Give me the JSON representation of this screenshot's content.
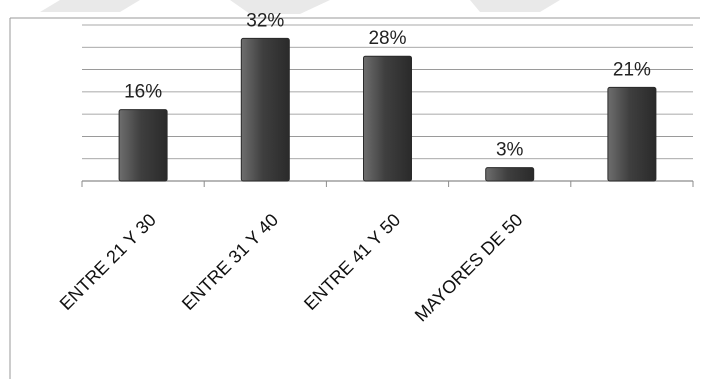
{
  "chart_data": {
    "type": "bar",
    "categories": [
      "ENTRE 21 Y 30",
      "ENTRE 31 Y 40",
      "ENTRE 41 Y 50",
      "MAYORES DE 50",
      ""
    ],
    "values": [
      16,
      32,
      28,
      3,
      21
    ],
    "value_labels": [
      "16%",
      "32%",
      "28%",
      "3%",
      "21%"
    ],
    "ylim": [
      0,
      35
    ],
    "grid": true,
    "legend": "none",
    "title": "",
    "xlabel": "",
    "ylabel": ""
  },
  "colors": {
    "bar_top": "#6e6e6e",
    "bar_mid": "#3f3f3f",
    "bar_edge": "#2a2a2a",
    "grid": "#8c8c8c",
    "frame": "#9a9a9a",
    "watermark": "#e9e9e9"
  }
}
